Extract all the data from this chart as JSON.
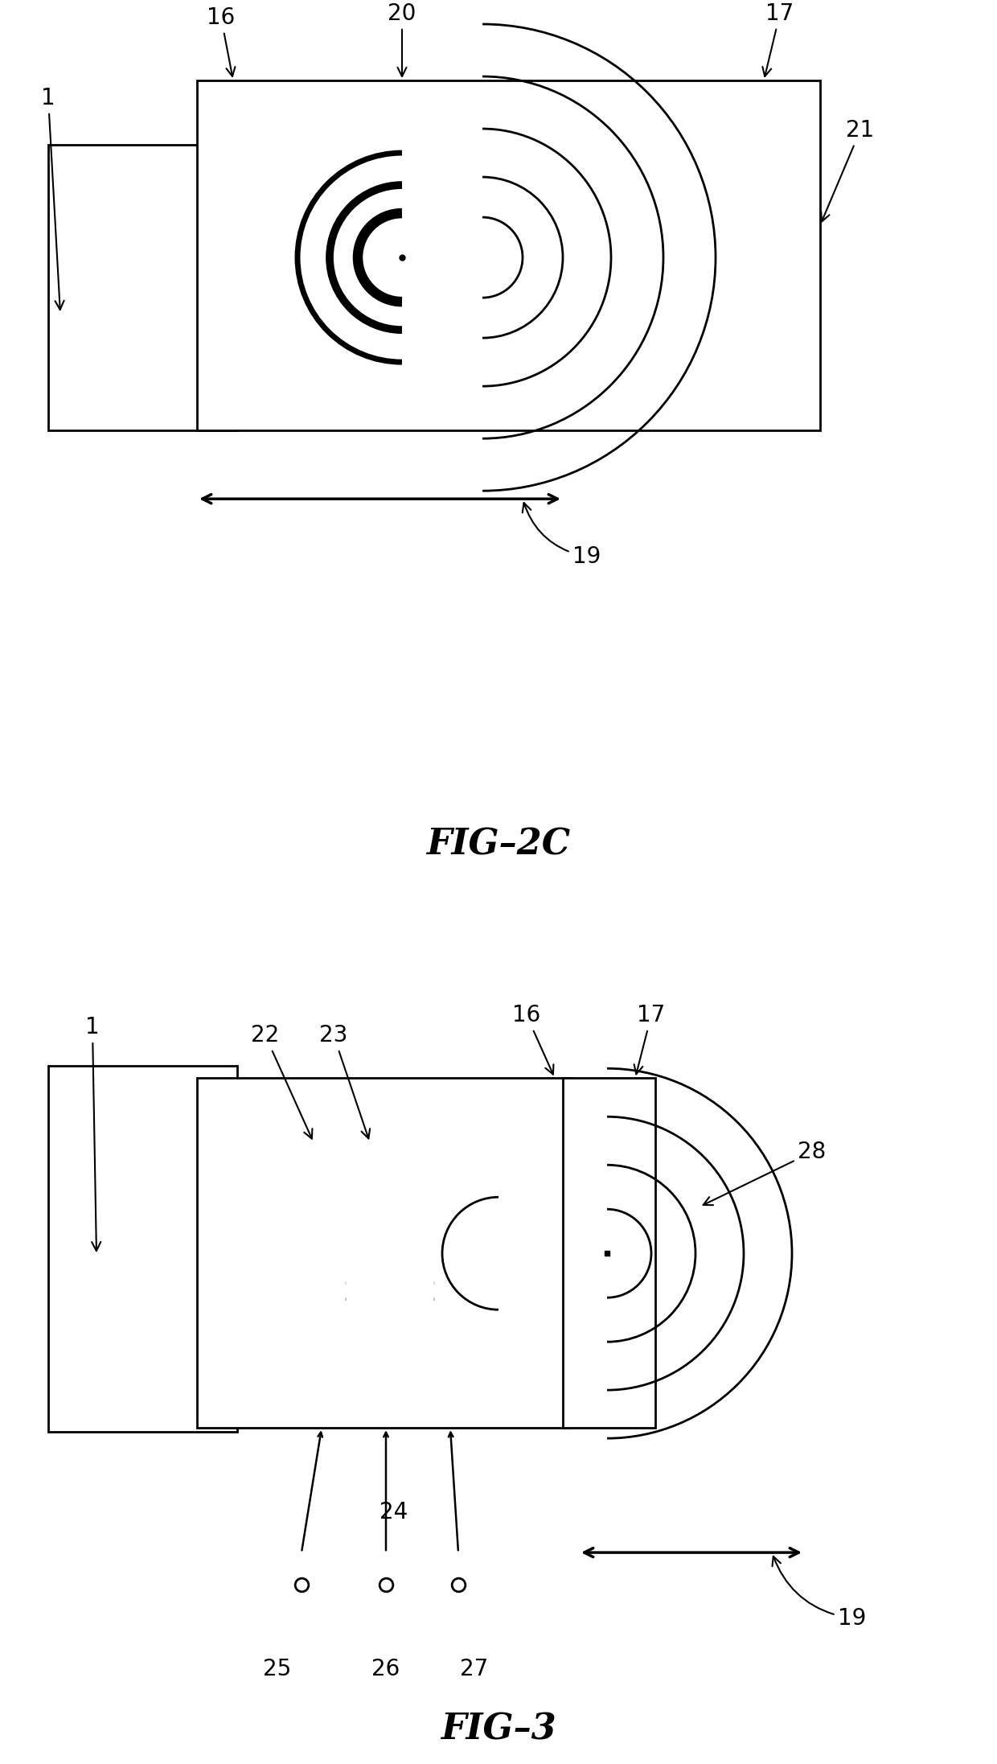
{
  "bg_color": "#ffffff",
  "fig_width": 12.4,
  "fig_height": 21.93,
  "lw": 2.0
}
